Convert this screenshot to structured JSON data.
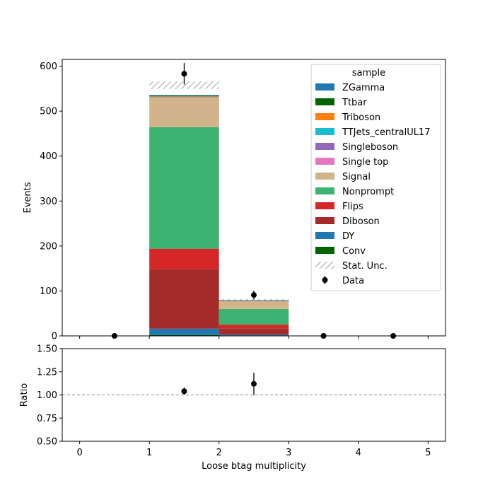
{
  "chart_data": [
    {
      "type": "bar",
      "stacked": true,
      "panel": "main",
      "ylabel": "Events",
      "ylim": [
        0,
        615
      ],
      "xlim": [
        -0.25,
        5.25
      ],
      "x_ticks": [
        "0",
        "1",
        "2",
        "3",
        "4",
        "5"
      ],
      "y_ticks": [
        "0",
        "100",
        "200",
        "300",
        "400",
        "500",
        "600"
      ],
      "bin_edges": [
        0,
        1,
        2,
        3,
        4,
        5
      ],
      "categories": [
        "0",
        "1",
        "2",
        "3",
        "4"
      ],
      "legend": {
        "title": "sample",
        "position": "top-right"
      },
      "series": [
        {
          "name": "ZGamma",
          "color": "#1f77b4",
          "values": [
            0,
            0.5,
            0.2,
            0,
            0
          ]
        },
        {
          "name": "Ttbar",
          "color": "#006400",
          "values": [
            0,
            2,
            0.5,
            0,
            0
          ]
        },
        {
          "name": "Triboson",
          "color": "#ff7f0e",
          "values": [
            0,
            0.5,
            0.1,
            0,
            0
          ]
        },
        {
          "name": "TTJets_centralUL17",
          "color": "#17becf",
          "values": [
            0,
            0.5,
            0.1,
            0,
            0
          ]
        },
        {
          "name": "Singleboson",
          "color": "#9467bd",
          "values": [
            0,
            0.5,
            0.1,
            0,
            0
          ]
        },
        {
          "name": "Single top",
          "color": "#e377c2",
          "values": [
            0,
            0.5,
            0.1,
            0,
            0
          ]
        },
        {
          "name": "Signal",
          "color": "#d2b48c",
          "values": [
            0,
            67,
            18,
            0,
            0
          ]
        },
        {
          "name": "Nonprompt",
          "color": "#3cb371",
          "values": [
            0,
            270,
            35,
            0,
            0
          ]
        },
        {
          "name": "Flips",
          "color": "#d62728",
          "values": [
            0,
            45,
            8,
            0,
            0
          ]
        },
        {
          "name": "Diboson",
          "color": "#a52a2a",
          "values": [
            0,
            133,
            14,
            0,
            0
          ]
        },
        {
          "name": "DY",
          "color": "#1f77b4",
          "values": [
            0,
            14,
            2,
            0,
            0
          ]
        },
        {
          "name": "Conv",
          "color": "#006400",
          "values": [
            0,
            2,
            1,
            0,
            0
          ]
        }
      ],
      "stack_order_bottom_to_top": [
        "Conv",
        "DY",
        "Diboson",
        "Flips",
        "Nonprompt",
        "Signal",
        "Single top",
        "Singleboson",
        "TTJets_centralUL17",
        "Triboson",
        "Ttbar",
        "ZGamma"
      ],
      "stat_unc": {
        "name": "Stat. Unc.",
        "bins": [
          1,
          2
        ],
        "low": [
          549,
          78
        ],
        "high": [
          566,
          82
        ]
      },
      "data": {
        "name": "Data",
        "color": "#000000",
        "x": [
          0.5,
          1.5,
          2.5,
          3.5,
          4.5
        ],
        "y": [
          0,
          583,
          91,
          0,
          0
        ],
        "yerr": [
          0,
          24,
          10,
          0,
          0
        ]
      }
    },
    {
      "type": "scatter",
      "panel": "ratio",
      "xlabel": "Loose btag multiplicity",
      "ylabel": "Ratio",
      "ylim": [
        0.5,
        1.5
      ],
      "xlim": [
        -0.25,
        5.25
      ],
      "x_ticks": [
        "0",
        "1",
        "2",
        "3",
        "4",
        "5"
      ],
      "y_ticks": [
        "0.50",
        "0.75",
        "1.00",
        "1.25",
        "1.50"
      ],
      "reference_line": 1.0,
      "points": {
        "x": [
          1.5,
          2.5
        ],
        "y": [
          1.04,
          1.12
        ],
        "yerr": [
          0.04,
          0.12
        ]
      }
    }
  ]
}
